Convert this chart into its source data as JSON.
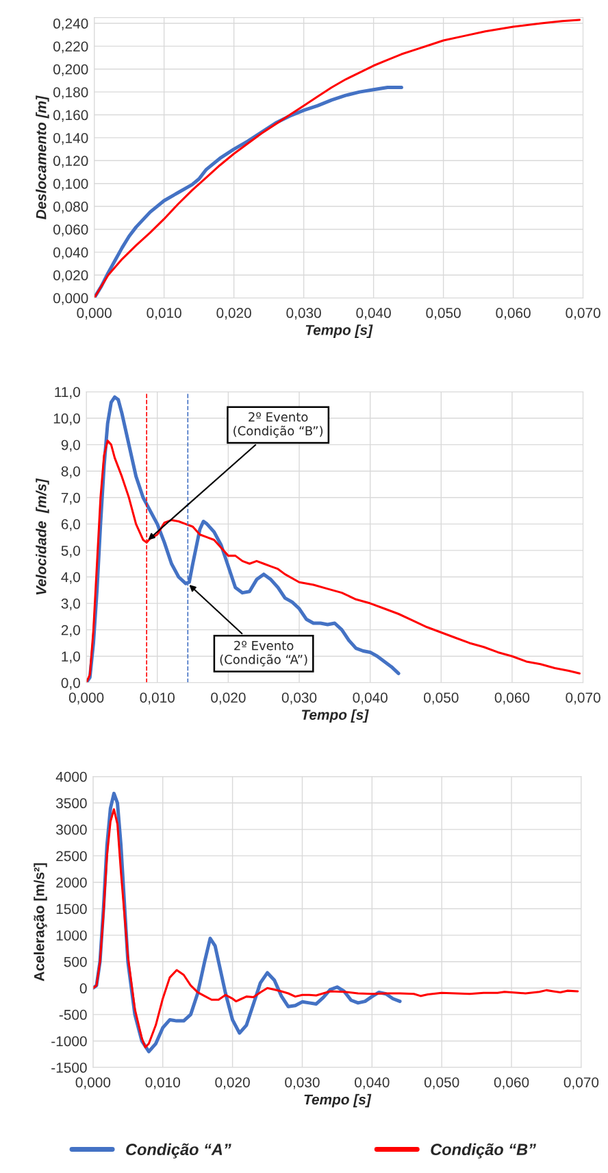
{
  "chart_data": [
    {
      "type": "line",
      "xlabel": "Tempo [s]",
      "ylabel": "Deslocamento [m]",
      "grid": true,
      "legend": false,
      "xlim": [
        0,
        0.07
      ],
      "ylim": [
        0,
        0.245
      ],
      "xticks": [
        {
          "value": 0,
          "label": "0,000"
        },
        {
          "value": 0.01,
          "label": "0,010"
        },
        {
          "value": 0.02,
          "label": "0,020"
        },
        {
          "value": 0.03,
          "label": "0,030"
        },
        {
          "value": 0.04,
          "label": "0,040"
        },
        {
          "value": 0.05,
          "label": "0,050"
        },
        {
          "value": 0.06,
          "label": "0,060"
        },
        {
          "value": 0.07,
          "label": "0,070"
        }
      ],
      "yticks": [
        {
          "value": 0,
          "label": "0,000"
        },
        {
          "value": 0.02,
          "label": "0,020"
        },
        {
          "value": 0.04,
          "label": "0,040"
        },
        {
          "value": 0.06,
          "label": "0,060"
        },
        {
          "value": 0.08,
          "label": "0,080"
        },
        {
          "value": 0.1,
          "label": "0,100"
        },
        {
          "value": 0.12,
          "label": "0,120"
        },
        {
          "value": 0.14,
          "label": "0,140"
        },
        {
          "value": 0.16,
          "label": "0,160"
        },
        {
          "value": 0.18,
          "label": "0,180"
        },
        {
          "value": 0.2,
          "label": "0,200"
        },
        {
          "value": 0.22,
          "label": "0,220"
        },
        {
          "value": 0.24,
          "label": "0,240"
        }
      ],
      "series": [
        {
          "color": "#4472c4",
          "x": [
            0,
            0.001,
            0.002,
            0.003,
            0.004,
            0.005,
            0.006,
            0.008,
            0.01,
            0.012,
            0.014,
            0.015,
            0.016,
            0.018,
            0.02,
            0.022,
            0.024,
            0.026,
            0.028,
            0.03,
            0.032,
            0.034,
            0.036,
            0.038,
            0.04,
            0.042,
            0.044
          ],
          "values": [
            0,
            0.01,
            0.022,
            0.033,
            0.044,
            0.054,
            0.062,
            0.075,
            0.085,
            0.092,
            0.099,
            0.104,
            0.112,
            0.122,
            0.13,
            0.137,
            0.145,
            0.153,
            0.159,
            0.164,
            0.168,
            0.173,
            0.177,
            0.18,
            0.182,
            0.184,
            0.184
          ]
        },
        {
          "color": "#ff0000",
          "x": [
            0,
            0.001,
            0.002,
            0.004,
            0.006,
            0.008,
            0.01,
            0.012,
            0.014,
            0.016,
            0.018,
            0.02,
            0.022,
            0.024,
            0.026,
            0.028,
            0.03,
            0.032,
            0.034,
            0.036,
            0.038,
            0.04,
            0.042,
            0.044,
            0.046,
            0.048,
            0.05,
            0.053,
            0.056,
            0.06,
            0.064,
            0.067,
            0.0695
          ],
          "values": [
            0,
            0.01,
            0.02,
            0.034,
            0.046,
            0.057,
            0.069,
            0.082,
            0.094,
            0.105,
            0.116,
            0.126,
            0.135,
            0.144,
            0.152,
            0.16,
            0.168,
            0.176,
            0.184,
            0.191,
            0.197,
            0.203,
            0.208,
            0.213,
            0.217,
            0.221,
            0.225,
            0.229,
            0.233,
            0.237,
            0.24,
            0.242,
            0.243
          ]
        }
      ]
    },
    {
      "type": "line",
      "xlabel": "Tempo [s]",
      "ylabel": "Velocidade  [m/s]",
      "grid": true,
      "legend": false,
      "xlim": [
        0,
        0.07
      ],
      "ylim": [
        0,
        11
      ],
      "xticks": [
        {
          "value": 0,
          "label": "0,000"
        },
        {
          "value": 0.01,
          "label": "0,010"
        },
        {
          "value": 0.02,
          "label": "0,020"
        },
        {
          "value": 0.03,
          "label": "0,030"
        },
        {
          "value": 0.04,
          "label": "0,040"
        },
        {
          "value": 0.05,
          "label": "0,050"
        },
        {
          "value": 0.06,
          "label": "0,060"
        },
        {
          "value": 0.07,
          "label": "0,070"
        }
      ],
      "yticks": [
        {
          "value": 0,
          "label": "0,0"
        },
        {
          "value": 1,
          "label": "1,0"
        },
        {
          "value": 2,
          "label": "2,0"
        },
        {
          "value": 3,
          "label": "3,0"
        },
        {
          "value": 4,
          "label": "4,0"
        },
        {
          "value": 5,
          "label": "5,0"
        },
        {
          "value": 6,
          "label": "6,0"
        },
        {
          "value": 7,
          "label": "7,0"
        },
        {
          "value": 8,
          "label": "8,0"
        },
        {
          "value": 9,
          "label": "9,0"
        },
        {
          "value": 10,
          "label": "10,0"
        },
        {
          "value": 11,
          "label": "11,0"
        }
      ],
      "ref_lines": [
        {
          "axis": "x",
          "value": 0.0085,
          "color": "#ff0000",
          "line_style": "dashed"
        },
        {
          "axis": "x",
          "value": 0.0143,
          "color": "#4472c4",
          "line_style": "dashed"
        }
      ],
      "annotations": [
        {
          "text": "2º Evento\n(Condição “B”)",
          "x": 0.0085,
          "y": 5.35
        },
        {
          "text": "2º Evento\n(Condição “A”)",
          "x": 0.0143,
          "y": 3.75
        }
      ],
      "series": [
        {
          "color": "#4472c4",
          "x": [
            0,
            0.0005,
            0.001,
            0.0015,
            0.002,
            0.0025,
            0.003,
            0.0035,
            0.004,
            0.0045,
            0.005,
            0.006,
            0.007,
            0.008,
            0.009,
            0.01,
            0.011,
            0.012,
            0.013,
            0.014,
            0.0145,
            0.015,
            0.016,
            0.0165,
            0.017,
            0.018,
            0.019,
            0.02,
            0.021,
            0.022,
            0.023,
            0.024,
            0.025,
            0.026,
            0.027,
            0.028,
            0.029,
            0.03,
            0.031,
            0.032,
            0.033,
            0.034,
            0.035,
            0.036,
            0.037,
            0.038,
            0.039,
            0.04,
            0.041,
            0.042,
            0.043,
            0.044
          ],
          "values": [
            0,
            0.2,
            1.5,
            3.5,
            6.0,
            8.2,
            9.8,
            10.6,
            10.8,
            10.7,
            10.2,
            9.0,
            7.8,
            7.0,
            6.5,
            6.0,
            5.3,
            4.5,
            4.0,
            3.75,
            3.8,
            4.5,
            5.8,
            6.1,
            6.0,
            5.7,
            5.2,
            4.4,
            3.6,
            3.4,
            3.45,
            3.9,
            4.1,
            3.9,
            3.6,
            3.2,
            3.05,
            2.8,
            2.4,
            2.25,
            2.25,
            2.2,
            2.25,
            2.0,
            1.6,
            1.3,
            1.2,
            1.15,
            1.0,
            0.8,
            0.6,
            0.35
          ]
        },
        {
          "color": "#ff0000",
          "x": [
            0,
            0.0005,
            0.001,
            0.0015,
            0.002,
            0.0025,
            0.003,
            0.0035,
            0.004,
            0.005,
            0.006,
            0.007,
            0.008,
            0.0085,
            0.009,
            0.01,
            0.011,
            0.012,
            0.013,
            0.014,
            0.015,
            0.016,
            0.017,
            0.018,
            0.019,
            0.02,
            0.021,
            0.022,
            0.023,
            0.024,
            0.025,
            0.026,
            0.027,
            0.028,
            0.03,
            0.032,
            0.034,
            0.036,
            0.038,
            0.04,
            0.042,
            0.044,
            0.046,
            0.048,
            0.05,
            0.052,
            0.054,
            0.056,
            0.058,
            0.06,
            0.062,
            0.064,
            0.066,
            0.068,
            0.0695
          ],
          "values": [
            0,
            0.3,
            2.0,
            4.5,
            7.0,
            8.6,
            9.15,
            9.0,
            8.5,
            7.8,
            7.0,
            6.0,
            5.4,
            5.3,
            5.45,
            5.6,
            6.05,
            6.15,
            6.1,
            6.0,
            5.9,
            5.6,
            5.5,
            5.4,
            5.1,
            4.8,
            4.8,
            4.6,
            4.5,
            4.6,
            4.5,
            4.4,
            4.3,
            4.1,
            3.8,
            3.7,
            3.55,
            3.4,
            3.15,
            3.0,
            2.8,
            2.6,
            2.35,
            2.1,
            1.9,
            1.7,
            1.5,
            1.35,
            1.15,
            1.0,
            0.8,
            0.7,
            0.55,
            0.45,
            0.35
          ]
        }
      ]
    },
    {
      "type": "line",
      "xlabel": "Tempo [s]",
      "ylabel": "Aceleração [m/s²]",
      "grid": true,
      "legend": "bottom",
      "xlim": [
        0,
        0.07
      ],
      "ylim": [
        -1500,
        4000
      ],
      "xticks": [
        {
          "value": 0,
          "label": "0,000"
        },
        {
          "value": 0.01,
          "label": "0,010"
        },
        {
          "value": 0.02,
          "label": "0,020"
        },
        {
          "value": 0.03,
          "label": "0,030"
        },
        {
          "value": 0.04,
          "label": "0,040"
        },
        {
          "value": 0.05,
          "label": "0,050"
        },
        {
          "value": 0.06,
          "label": "0,060"
        },
        {
          "value": 0.07,
          "label": "0,070"
        }
      ],
      "yticks": [
        -1500,
        -1000,
        -500,
        0,
        500,
        1000,
        1500,
        2000,
        2500,
        3000,
        3500,
        4000
      ],
      "series": [
        {
          "name": "Condição “A”",
          "color": "#4472c4",
          "x": [
            0,
            0.0005,
            0.001,
            0.0015,
            0.002,
            0.0025,
            0.003,
            0.0035,
            0.004,
            0.0045,
            0.005,
            0.006,
            0.007,
            0.008,
            0.009,
            0.01,
            0.011,
            0.012,
            0.013,
            0.014,
            0.015,
            0.016,
            0.0168,
            0.0175,
            0.018,
            0.019,
            0.02,
            0.021,
            0.022,
            0.023,
            0.024,
            0.025,
            0.026,
            0.027,
            0.028,
            0.029,
            0.03,
            0.031,
            0.032,
            0.033,
            0.034,
            0.035,
            0.036,
            0.037,
            0.038,
            0.039,
            0.04,
            0.041,
            0.042,
            0.043,
            0.044
          ],
          "values": [
            0,
            50,
            500,
            1500,
            2700,
            3400,
            3680,
            3500,
            2700,
            1600,
            500,
            -500,
            -1000,
            -1200,
            -1050,
            -750,
            -600,
            -620,
            -620,
            -500,
            -100,
            500,
            940,
            800,
            500,
            -100,
            -600,
            -850,
            -700,
            -300,
            100,
            290,
            150,
            -150,
            -350,
            -330,
            -260,
            -280,
            -300,
            -180,
            -30,
            20,
            -60,
            -230,
            -280,
            -250,
            -160,
            -80,
            -110,
            -200,
            -250
          ]
        },
        {
          "name": "Condição “B”",
          "color": "#ff0000",
          "x": [
            0,
            0.0005,
            0.001,
            0.0015,
            0.002,
            0.0025,
            0.003,
            0.0035,
            0.004,
            0.005,
            0.006,
            0.007,
            0.0075,
            0.008,
            0.009,
            0.01,
            0.011,
            0.012,
            0.013,
            0.014,
            0.015,
            0.016,
            0.017,
            0.018,
            0.019,
            0.02,
            0.0205,
            0.021,
            0.022,
            0.023,
            0.024,
            0.025,
            0.026,
            0.027,
            0.028,
            0.029,
            0.03,
            0.031,
            0.032,
            0.033,
            0.034,
            0.036,
            0.038,
            0.04,
            0.042,
            0.044,
            0.046,
            0.047,
            0.048,
            0.05,
            0.052,
            0.054,
            0.056,
            0.058,
            0.059,
            0.06,
            0.062,
            0.064,
            0.065,
            0.066,
            0.067,
            0.068,
            0.0695
          ],
          "values": [
            0,
            50,
            500,
            1400,
            2500,
            3150,
            3380,
            3100,
            2200,
            600,
            -400,
            -950,
            -1120,
            -1050,
            -700,
            -200,
            200,
            340,
            250,
            50,
            -80,
            -150,
            -220,
            -220,
            -130,
            -200,
            -250,
            -220,
            -160,
            -170,
            -80,
            0,
            -30,
            -60,
            -100,
            -160,
            -130,
            -130,
            -140,
            -100,
            -60,
            -70,
            -100,
            -110,
            -100,
            -100,
            -110,
            -150,
            -120,
            -90,
            -100,
            -110,
            -90,
            -90,
            -70,
            -80,
            -100,
            -70,
            -40,
            -60,
            -80,
            -50,
            -60
          ]
        }
      ]
    }
  ]
}
